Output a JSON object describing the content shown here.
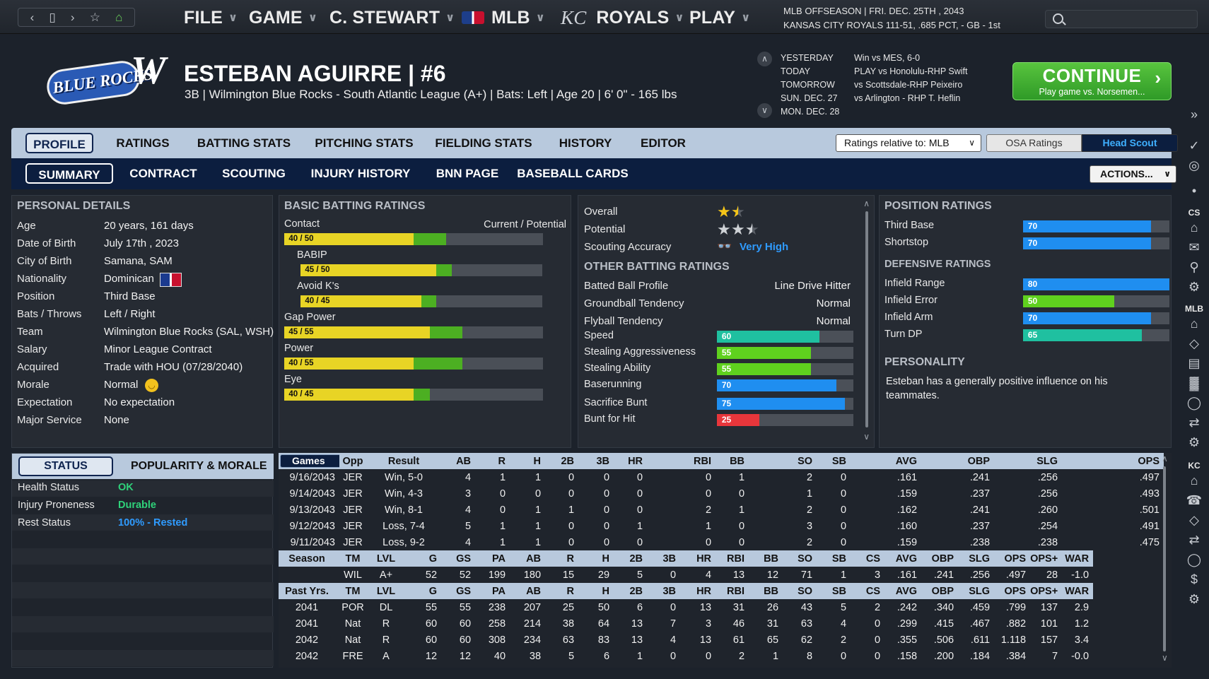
{
  "menu": {
    "file": "FILE",
    "game": "GAME",
    "manager": "C. STEWART",
    "mlb": "MLB",
    "team": "ROYALS",
    "play": "PLAY"
  },
  "season_info": {
    "line1": "MLB OFFSEASON  |  FRI. DEC. 25TH , 2043",
    "line2": "KANSAS CITY ROYALS   111-51, .685 PCT, - GB - 1st"
  },
  "team_logo": {
    "text": "BLUE ROCKS",
    "w": "W"
  },
  "player": {
    "name": "ESTEBAN AGUIRRE  |  #6",
    "sub": "3B | Wilmington Blue Rocks - South Atlantic League (A+)  |  Bats: Left  |  Age 20  |  6' 0\" - 165 lbs"
  },
  "schedule": [
    {
      "day": "YESTERDAY",
      "game": "Win vs MES, 6-0"
    },
    {
      "day": "TODAY",
      "game": "PLAY vs Honolulu-RHP Swift"
    },
    {
      "day": "TOMORROW",
      "game": "vs Scottsdale-RHP Peixeiro"
    },
    {
      "day": "SUN. DEC. 27",
      "game": "vs Arlington - RHP T. Heflin"
    },
    {
      "day": "MON. DEC. 28",
      "game": ""
    }
  ],
  "continue": {
    "label": "CONTINUE",
    "sub": "Play game vs. Norsemen..."
  },
  "tabs1": [
    "PROFILE",
    "RATINGS",
    "BATTING STATS",
    "PITCHING STATS",
    "FIELDING STATS",
    "HISTORY",
    "EDITOR"
  ],
  "tabs2": [
    "SUMMARY",
    "CONTRACT",
    "SCOUTING",
    "INJURY HISTORY",
    "BNN PAGE",
    "BASEBALL CARDS"
  ],
  "ratings_relative": "Ratings relative to: MLB",
  "osa_ratings": "OSA Ratings",
  "head_scout": "Head Scout",
  "actions": "ACTIONS...",
  "personal": {
    "title": "PERSONAL DETAILS",
    "rows": [
      {
        "label": "Age",
        "value": "20 years, 161 days"
      },
      {
        "label": "Date of Birth",
        "value": "July 17th , 2023"
      },
      {
        "label": "City of Birth",
        "value": "Samana, SAM"
      },
      {
        "label": "Nationality",
        "value": "Dominican"
      },
      {
        "label": "Position",
        "value": "Third Base"
      },
      {
        "label": "Bats / Throws",
        "value": "Left / Right"
      },
      {
        "label": "Team",
        "value": "Wilmington Blue Rocks (SAL, WSH)"
      },
      {
        "label": "Salary",
        "value": "Minor League Contract"
      },
      {
        "label": "Acquired",
        "value": "Trade with HOU (07/28/2040)"
      },
      {
        "label": "Morale",
        "value": "Normal"
      },
      {
        "label": "Expectation",
        "value": "No expectation"
      },
      {
        "label": "Major Service",
        "value": "None"
      }
    ]
  },
  "basic_batting": {
    "title": "BASIC BATTING RATINGS",
    "header_right": "Current / Potential",
    "rows": [
      {
        "label": "Contact",
        "badge": "40 / 50",
        "current": 40,
        "potential": 50,
        "indent": false
      },
      {
        "label": "BABIP",
        "badge": "45 / 50",
        "current": 45,
        "potential": 50,
        "indent": true
      },
      {
        "label": "Avoid K's",
        "badge": "40 / 45",
        "current": 40,
        "potential": 45,
        "indent": true
      },
      {
        "label": "Gap Power",
        "badge": "45 / 55",
        "current": 45,
        "potential": 55,
        "indent": false
      },
      {
        "label": "Power",
        "badge": "40 / 55",
        "current": 40,
        "potential": 55,
        "indent": false
      },
      {
        "label": "Eye",
        "badge": "40 / 45",
        "current": 40,
        "potential": 45,
        "indent": false
      }
    ]
  },
  "summary": {
    "overall_label": "Overall",
    "overall_stars": 1.5,
    "potential_label": "Potential",
    "potential_stars": 2.5,
    "scouting_label": "Scouting Accuracy",
    "scouting_value": "Very High",
    "other_title": "OTHER BATTING RATINGS",
    "other": [
      {
        "label": "Batted Ball Profile",
        "value": "Line Drive Hitter"
      },
      {
        "label": "Groundball Tendency",
        "value": "Normal"
      },
      {
        "label": "Flyball Tendency",
        "value": "Normal"
      }
    ],
    "running": [
      {
        "label": "Speed",
        "value": 60,
        "color": "#1fc0a0"
      },
      {
        "label": "Stealing Aggressiveness",
        "value": 55,
        "color": "#5fd11e"
      },
      {
        "label": "Stealing Ability",
        "value": 55,
        "color": "#5fd11e"
      },
      {
        "label": "Baserunning",
        "value": 70,
        "color": "#1f8ef0"
      },
      {
        "label": "Sacrifice Bunt",
        "value": 75,
        "color": "#1f8ef0"
      },
      {
        "label": "Bunt for Hit",
        "value": 25,
        "color": "#e8363b"
      }
    ]
  },
  "position": {
    "title": "POSITION RATINGS",
    "rows": [
      {
        "label": "Third Base",
        "value": 70,
        "color": "#1f8ef0"
      },
      {
        "label": "Shortstop",
        "value": 70,
        "color": "#1f8ef0"
      }
    ],
    "def_title": "DEFENSIVE RATINGS",
    "def_rows": [
      {
        "label": "Infield Range",
        "value": 80,
        "color": "#1f8ef0"
      },
      {
        "label": "Infield Error",
        "value": 50,
        "color": "#5fd11e"
      },
      {
        "label": "Infield Arm",
        "value": 70,
        "color": "#1f8ef0"
      },
      {
        "label": "Turn DP",
        "value": 65,
        "color": "#1fc0a0"
      }
    ],
    "personality_title": "PERSONALITY",
    "personality_text": "Esteban has a generally positive influence on his teammates."
  },
  "status": {
    "tab1": "STATUS",
    "tab2": "POPULARITY & MORALE",
    "rows": [
      {
        "label": "Health Status",
        "value": "OK",
        "color": "#2fd27a"
      },
      {
        "label": "Injury Proneness",
        "value": "Durable",
        "color": "#2fd27a"
      },
      {
        "label": "Rest Status",
        "value": "100% - Rested",
        "color": "#2f9bff"
      }
    ]
  },
  "games": {
    "select": "Games",
    "headers": [
      "Opp",
      "Result",
      "AB",
      "R",
      "H",
      "2B",
      "3B",
      "HR",
      "RBI",
      "BB",
      "SO",
      "SB",
      "AVG",
      "OBP",
      "SLG",
      "OPS"
    ],
    "rows": [
      [
        "9/16/2043",
        "JER",
        "Win, 5-0",
        "4",
        "1",
        "1",
        "0",
        "0",
        "0",
        "0",
        "1",
        "2",
        "0",
        ".161",
        ".241",
        ".256",
        ".497"
      ],
      [
        "9/14/2043",
        "JER",
        "Win, 4-3",
        "3",
        "0",
        "0",
        "0",
        "0",
        "0",
        "0",
        "0",
        "1",
        "0",
        ".159",
        ".237",
        ".256",
        ".493"
      ],
      [
        "9/13/2043",
        "JER",
        "Win, 8-1",
        "4",
        "0",
        "1",
        "1",
        "0",
        "0",
        "2",
        "1",
        "2",
        "0",
        ".162",
        ".241",
        ".260",
        ".501"
      ],
      [
        "9/12/2043",
        "JER",
        "Loss, 7-4",
        "5",
        "1",
        "1",
        "0",
        "0",
        "1",
        "1",
        "0",
        "3",
        "0",
        ".160",
        ".237",
        ".254",
        ".491"
      ],
      [
        "9/11/2043",
        "JER",
        "Loss, 9-2",
        "4",
        "1",
        "1",
        "0",
        "0",
        "0",
        "0",
        "0",
        "2",
        "0",
        ".159",
        ".238",
        ".238",
        ".475"
      ]
    ]
  },
  "season_stats": {
    "headers": [
      "Season",
      "TM",
      "LVL",
      "G",
      "GS",
      "PA",
      "AB",
      "R",
      "H",
      "2B",
      "3B",
      "HR",
      "RBI",
      "BB",
      "SO",
      "SB",
      "CS",
      "AVG",
      "OBP",
      "SLG",
      "OPS",
      "OPS+",
      "WAR"
    ],
    "rows": [
      [
        "",
        "WIL",
        "A+",
        "52",
        "52",
        "199",
        "180",
        "15",
        "29",
        "5",
        "0",
        "4",
        "13",
        "12",
        "71",
        "1",
        "3",
        ".161",
        ".241",
        ".256",
        ".497",
        "28",
        "-1.0"
      ]
    ]
  },
  "past_stats": {
    "headers": [
      "Past Yrs.",
      "TM",
      "LVL",
      "G",
      "GS",
      "PA",
      "AB",
      "R",
      "H",
      "2B",
      "3B",
      "HR",
      "RBI",
      "BB",
      "SO",
      "SB",
      "CS",
      "AVG",
      "OBP",
      "SLG",
      "OPS",
      "OPS+",
      "WAR"
    ],
    "rows": [
      [
        "2041",
        "POR",
        "DL",
        "55",
        "55",
        "238",
        "207",
        "25",
        "50",
        "6",
        "0",
        "13",
        "31",
        "26",
        "43",
        "5",
        "2",
        ".242",
        ".340",
        ".459",
        ".799",
        "137",
        "2.9"
      ],
      [
        "2041",
        "Nat",
        "R",
        "60",
        "60",
        "258",
        "214",
        "38",
        "64",
        "13",
        "7",
        "3",
        "46",
        "31",
        "63",
        "4",
        "0",
        ".299",
        ".415",
        ".467",
        ".882",
        "101",
        "1.2"
      ],
      [
        "2042",
        "Nat",
        "R",
        "60",
        "60",
        "308",
        "234",
        "63",
        "83",
        "13",
        "4",
        "13",
        "61",
        "65",
        "62",
        "2",
        "0",
        ".355",
        ".506",
        ".611",
        "1.118",
        "157",
        "3.4"
      ],
      [
        "2042",
        "FRE",
        "A",
        "12",
        "12",
        "40",
        "38",
        "5",
        "6",
        "1",
        "0",
        "0",
        "2",
        "1",
        "8",
        "0",
        "0",
        ".158",
        ".200",
        ".184",
        ".384",
        "7",
        "-0.0"
      ]
    ]
  },
  "side": {
    "cs": "CS",
    "mlb": "MLB",
    "kc": "KC"
  },
  "colors": {
    "accent": "#102550",
    "continue": "#3fb02e",
    "badge": "#e8d425",
    "potential": "#4caf22"
  }
}
